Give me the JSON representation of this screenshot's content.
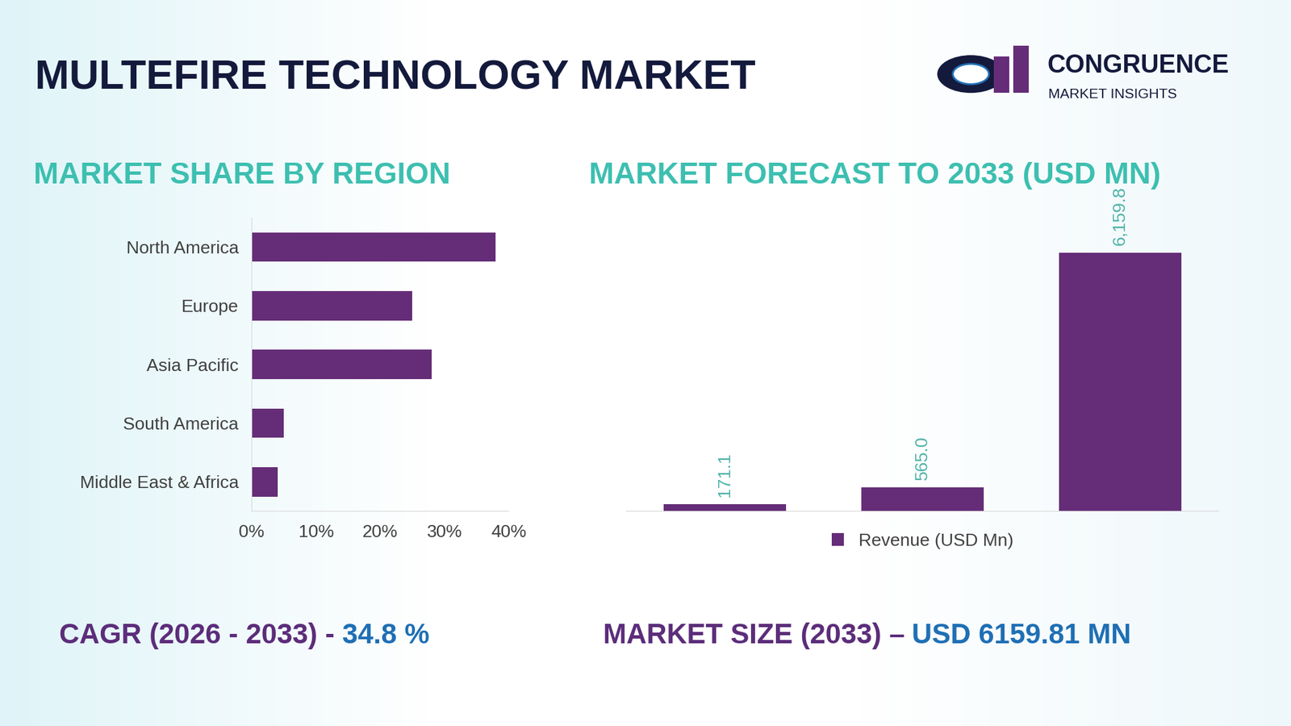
{
  "header": {
    "title": "MULTEFIRE TECHNOLOGY MARKET",
    "brand": "CONGRUENCE",
    "brand_subtitle": "MARKET INSIGHTS"
  },
  "chart_data": [
    {
      "type": "bar",
      "orientation": "horizontal",
      "title": "MARKET SHARE BY REGION",
      "categories": [
        "North America",
        "Europe",
        "Asia Pacific",
        "South America",
        "Middle East & Africa"
      ],
      "values": [
        38,
        25,
        28,
        5,
        4
      ],
      "color": "#652d78",
      "xlim": [
        0,
        40
      ],
      "xticks": [
        {
          "value": 0,
          "label": "0%"
        },
        {
          "value": 10,
          "label": "10%"
        },
        {
          "value": 20,
          "label": "20%"
        },
        {
          "value": 30,
          "label": "30%"
        },
        {
          "value": 40,
          "label": "40%"
        }
      ],
      "grid": false
    },
    {
      "type": "bar",
      "title": "MARKET FORECAST TO 2033 (USD MN)",
      "categories": [
        null,
        null,
        null
      ],
      "series": [
        {
          "name": "Revenue (USD Mn)",
          "color": "#652d78",
          "values": [
            171.1,
            565.0,
            6159.8
          ],
          "value_labels": [
            "171.1",
            "565.0",
            "6,159.8"
          ]
        }
      ],
      "ylim": [
        0,
        7000
      ],
      "data_labels": true,
      "tick_labels": false,
      "legend": "lower center",
      "grid": false
    }
  ],
  "footer": {
    "cagr_label": "CAGR (2026 - 2033) -",
    "cagr_value": "34.8 %",
    "market_size_label": "MARKET SIZE (2033) –",
    "market_size_value": "USD 6159.81 MN"
  }
}
